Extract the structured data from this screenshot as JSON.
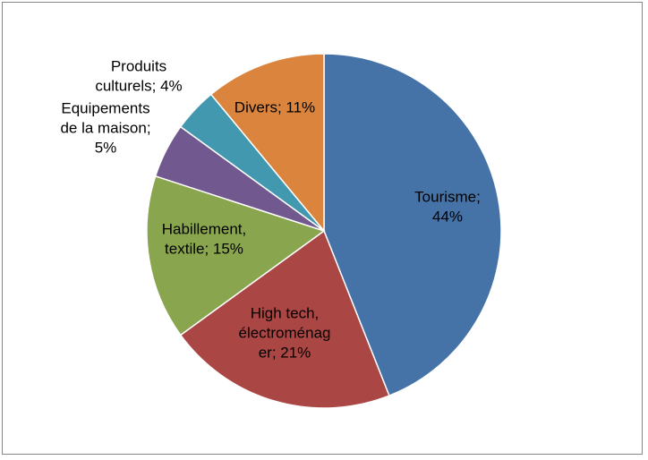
{
  "chart_data": {
    "type": "pie",
    "title": "",
    "start_angle_deg": 0,
    "direction": "clockwise",
    "legend": "none",
    "slices": [
      {
        "category": "Tourisme",
        "value": 44,
        "color": "#4572A7",
        "label_lines": [
          "Tourisme;",
          "44%"
        ]
      },
      {
        "category": "High tech, électroménager",
        "value": 21,
        "color": "#AA4643",
        "label_lines": [
          "High tech,",
          "électroménag",
          "er; 21%"
        ]
      },
      {
        "category": "Habillement, textile",
        "value": 15,
        "color": "#89A54E",
        "label_lines": [
          "Habillement,",
          "textile; 15%"
        ]
      },
      {
        "category": "Equipements de la maison",
        "value": 5,
        "color": "#71588F",
        "label_lines": [
          "Equipements",
          "de la maison;",
          "5%"
        ]
      },
      {
        "category": "Produits culturels",
        "value": 4,
        "color": "#4198AF",
        "label_lines": [
          "Produits",
          "culturels; 4%"
        ]
      },
      {
        "category": "Divers",
        "value": 11,
        "color": "#DB843D",
        "label_lines": [
          "Divers; 11%"
        ]
      }
    ]
  }
}
